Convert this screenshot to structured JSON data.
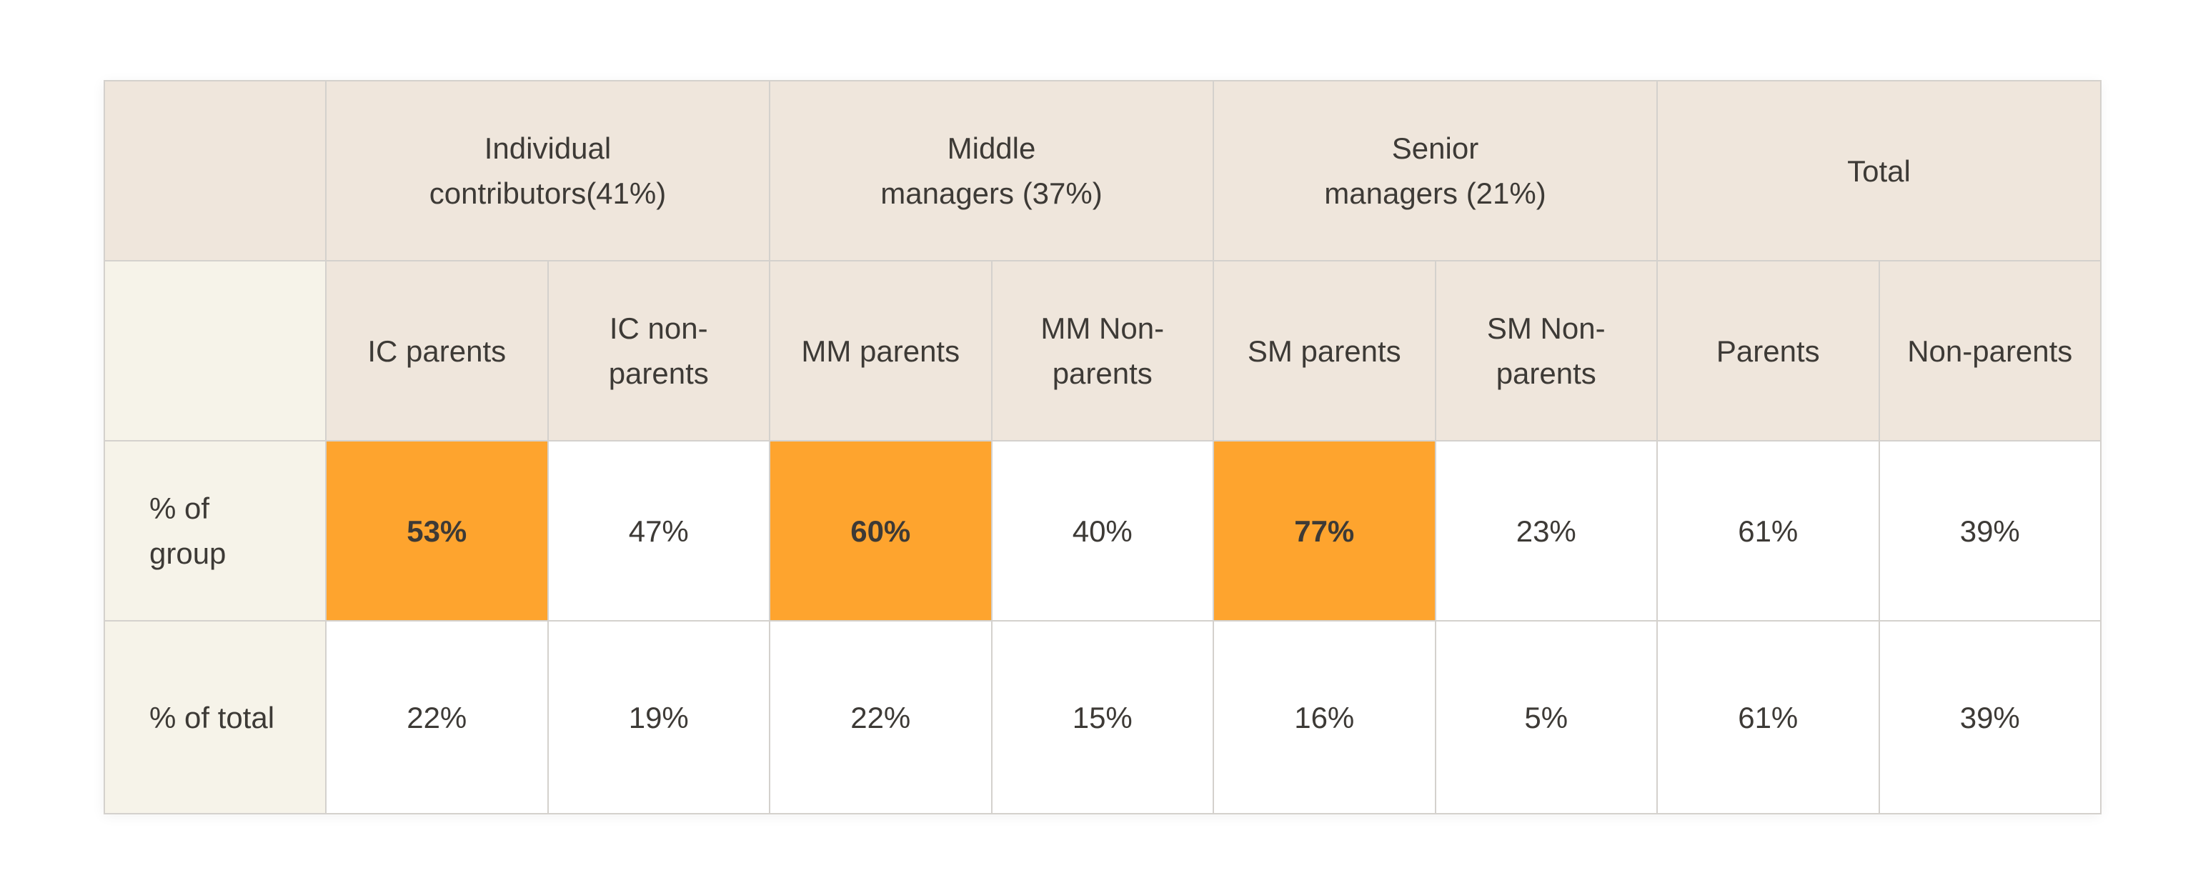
{
  "chart_data": {
    "type": "table",
    "column_groups": [
      {
        "label": "Individual\ncontributors(41%)",
        "span": 2
      },
      {
        "label": "Middle\nmanagers (37%)",
        "span": 2
      },
      {
        "label": "Senior\nmanagers (21%)",
        "span": 2
      },
      {
        "label": "Total",
        "span": 2
      }
    ],
    "columns": [
      "IC parents",
      "IC non-\nparents",
      "MM parents",
      "MM Non-\nparents",
      "SM parents",
      "SM Non-\nparents",
      "Parents",
      "Non-parents"
    ],
    "rows": [
      {
        "label": "% of\ngroup",
        "values": [
          "53%",
          "47%",
          "60%",
          "40%",
          "77%",
          "23%",
          "61%",
          "39%"
        ]
      },
      {
        "label": "% of total",
        "values": [
          "22%",
          "19%",
          "22%",
          "15%",
          "16%",
          "5%",
          "61%",
          "39%"
        ]
      }
    ],
    "highlighted_cells": [
      [
        0,
        0
      ],
      [
        0,
        2
      ],
      [
        0,
        4
      ]
    ],
    "highlight_color": "#fea42e",
    "header_color": "#efe6dc",
    "row_header_color": "#f6f3e9"
  }
}
